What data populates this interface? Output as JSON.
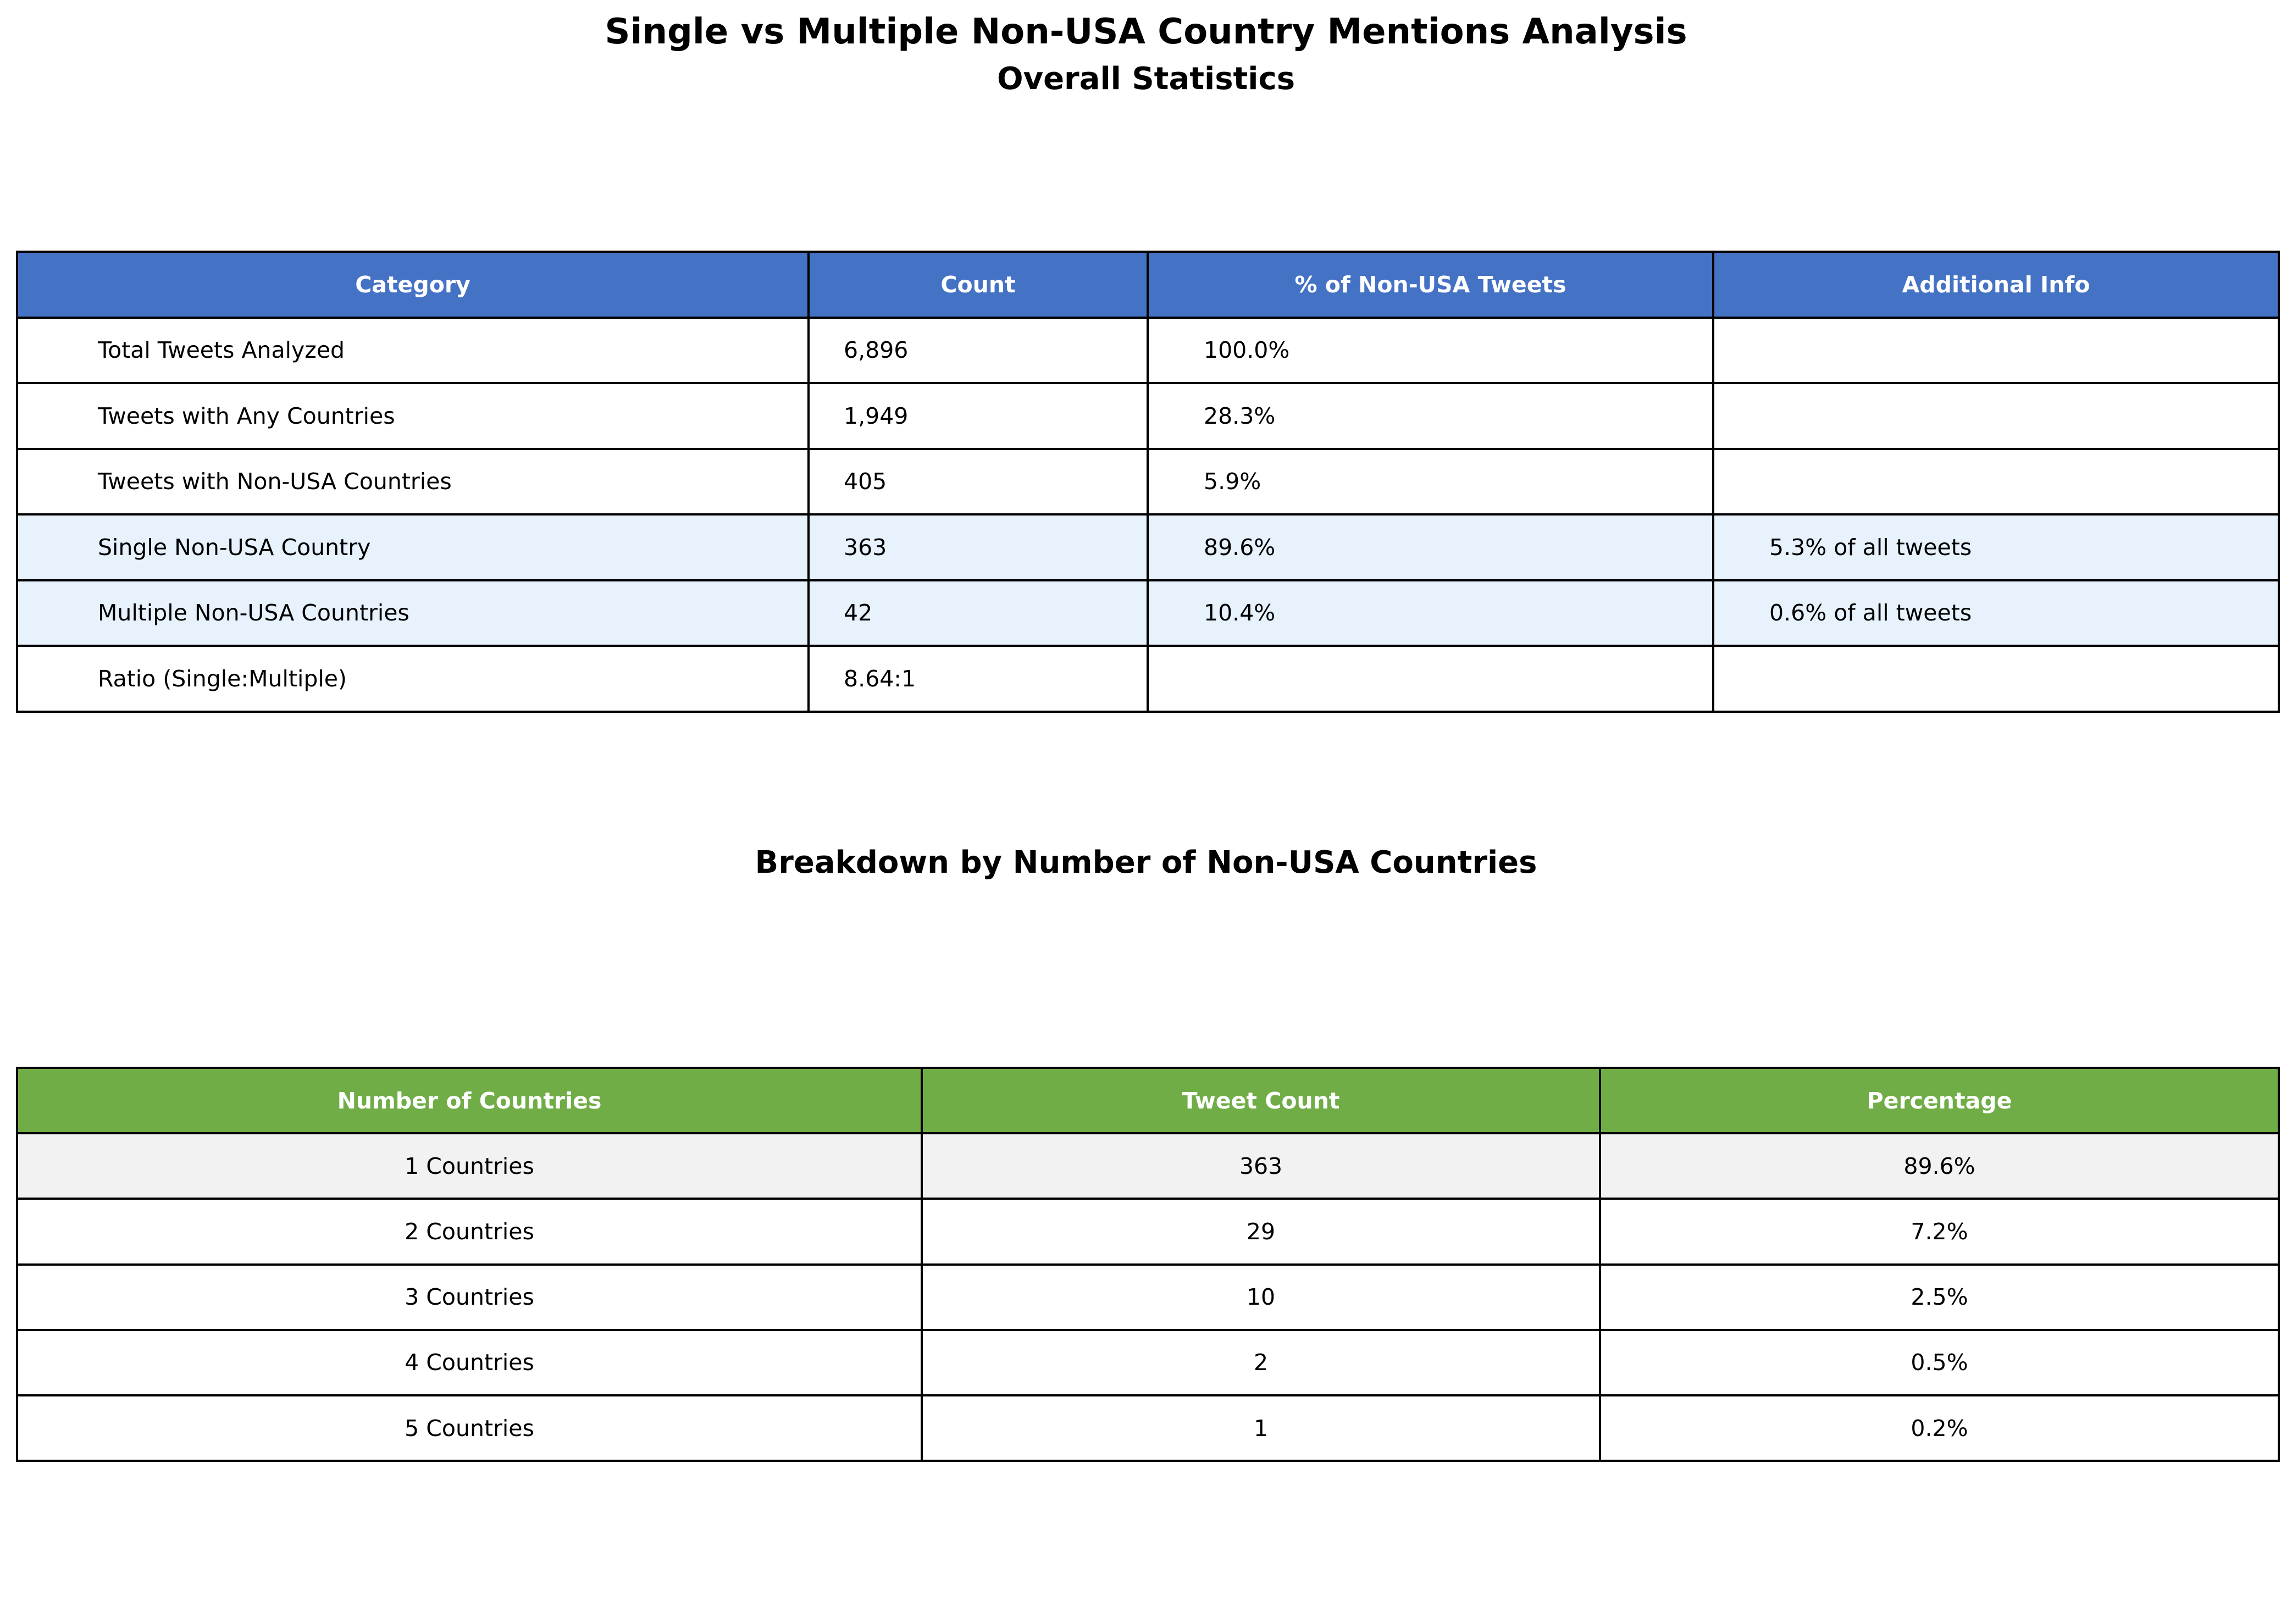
{
  "header": {
    "title": "Single vs Multiple Non-USA Country Mentions Analysis",
    "subtitle": "Overall Statistics"
  },
  "breakdown_heading": "Breakdown by Number of Non-USA Countries",
  "chart_data": [
    {
      "type": "table",
      "title": "Overall Statistics",
      "columns": [
        "Category",
        "Count",
        "% of Non-USA Tweets",
        "Additional Info"
      ],
      "rows": [
        [
          "Total Tweets Analyzed",
          "6,896",
          "100.0%",
          ""
        ],
        [
          "Tweets with Any Countries",
          "1,949",
          "28.3%",
          ""
        ],
        [
          "Tweets with Non-USA Countries",
          "405",
          "5.9%",
          ""
        ],
        [
          "Single Non-USA Country",
          "363",
          "89.6%",
          "5.3% of all tweets"
        ],
        [
          "Multiple Non-USA Countries",
          "42",
          "10.4%",
          "0.6% of all tweets"
        ],
        [
          "Ratio (Single:Multiple)",
          "8.64:1",
          "",
          ""
        ]
      ],
      "header_color": "#4472C4",
      "highlight_color": "#E7F2FD"
    },
    {
      "type": "table",
      "title": "Breakdown by Number of Non-USA Countries",
      "columns": [
        "Number of Countries",
        "Tweet Count",
        "Percentage"
      ],
      "rows": [
        [
          "1 Countries",
          "363",
          "89.6%"
        ],
        [
          "2 Countries",
          "29",
          "7.2%"
        ],
        [
          "3 Countries",
          "10",
          "2.5%"
        ],
        [
          "4 Countries",
          "2",
          "0.5%"
        ],
        [
          "5 Countries",
          "1",
          "0.2%"
        ]
      ],
      "header_color": "#70AD47",
      "highlight_color": "#F2F2F2"
    }
  ]
}
